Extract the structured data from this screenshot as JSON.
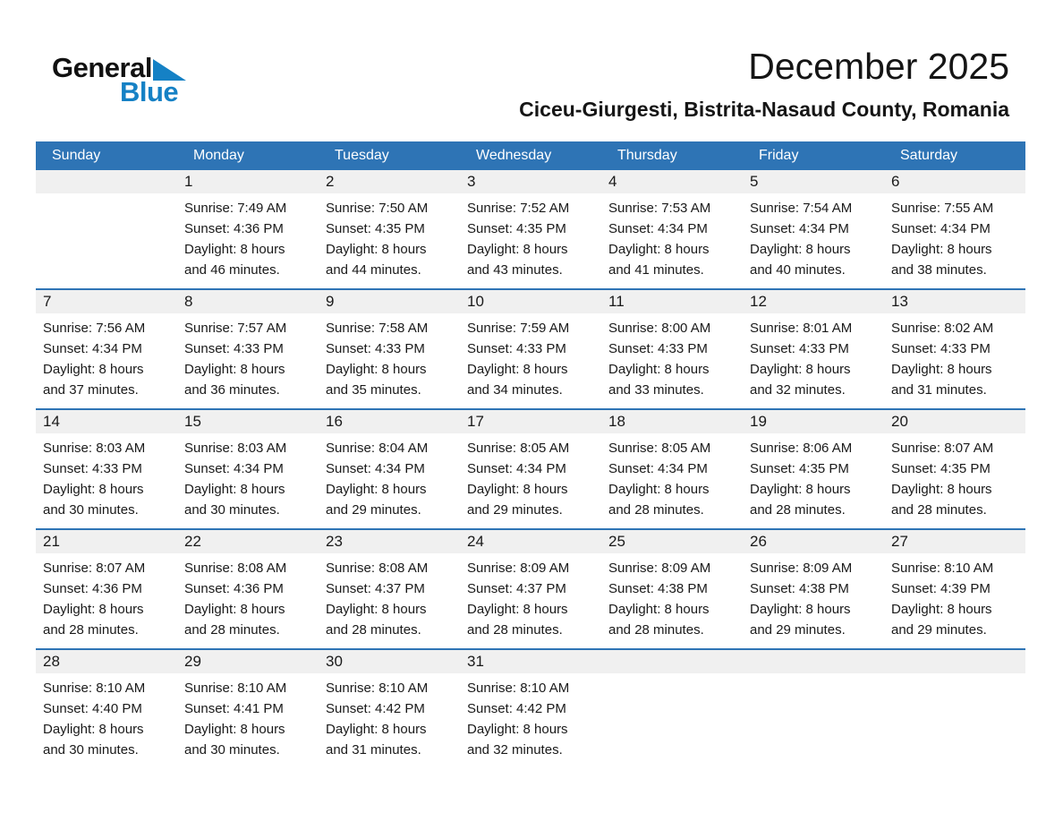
{
  "logo": {
    "part1": "General",
    "part2": "Blue"
  },
  "header": {
    "title": "December 2025",
    "subtitle": "Ciceu-Giurgesti, Bistrita-Nasaud County, Romania"
  },
  "colors": {
    "header_blue": "#2E74B5",
    "week_divider_blue": "#2E74B5",
    "number_band_gray": "#F0F0F0",
    "logo_blue": "#1581C5",
    "header_text": "#FFFFFF",
    "body_text": "#1A1A1A"
  },
  "calendar": {
    "day_headers": [
      "Sunday",
      "Monday",
      "Tuesday",
      "Wednesday",
      "Thursday",
      "Friday",
      "Saturday"
    ],
    "weeks": [
      {
        "days": [
          null,
          {
            "num": "1",
            "sunrise": "Sunrise: 7:49 AM",
            "sunset": "Sunset: 4:36 PM",
            "daylight1": "Daylight: 8 hours",
            "daylight2": "and 46 minutes."
          },
          {
            "num": "2",
            "sunrise": "Sunrise: 7:50 AM",
            "sunset": "Sunset: 4:35 PM",
            "daylight1": "Daylight: 8 hours",
            "daylight2": "and 44 minutes."
          },
          {
            "num": "3",
            "sunrise": "Sunrise: 7:52 AM",
            "sunset": "Sunset: 4:35 PM",
            "daylight1": "Daylight: 8 hours",
            "daylight2": "and 43 minutes."
          },
          {
            "num": "4",
            "sunrise": "Sunrise: 7:53 AM",
            "sunset": "Sunset: 4:34 PM",
            "daylight1": "Daylight: 8 hours",
            "daylight2": "and 41 minutes."
          },
          {
            "num": "5",
            "sunrise": "Sunrise: 7:54 AM",
            "sunset": "Sunset: 4:34 PM",
            "daylight1": "Daylight: 8 hours",
            "daylight2": "and 40 minutes."
          },
          {
            "num": "6",
            "sunrise": "Sunrise: 7:55 AM",
            "sunset": "Sunset: 4:34 PM",
            "daylight1": "Daylight: 8 hours",
            "daylight2": "and 38 minutes."
          }
        ]
      },
      {
        "days": [
          {
            "num": "7",
            "sunrise": "Sunrise: 7:56 AM",
            "sunset": "Sunset: 4:34 PM",
            "daylight1": "Daylight: 8 hours",
            "daylight2": "and 37 minutes."
          },
          {
            "num": "8",
            "sunrise": "Sunrise: 7:57 AM",
            "sunset": "Sunset: 4:33 PM",
            "daylight1": "Daylight: 8 hours",
            "daylight2": "and 36 minutes."
          },
          {
            "num": "9",
            "sunrise": "Sunrise: 7:58 AM",
            "sunset": "Sunset: 4:33 PM",
            "daylight1": "Daylight: 8 hours",
            "daylight2": "and 35 minutes."
          },
          {
            "num": "10",
            "sunrise": "Sunrise: 7:59 AM",
            "sunset": "Sunset: 4:33 PM",
            "daylight1": "Daylight: 8 hours",
            "daylight2": "and 34 minutes."
          },
          {
            "num": "11",
            "sunrise": "Sunrise: 8:00 AM",
            "sunset": "Sunset: 4:33 PM",
            "daylight1": "Daylight: 8 hours",
            "daylight2": "and 33 minutes."
          },
          {
            "num": "12",
            "sunrise": "Sunrise: 8:01 AM",
            "sunset": "Sunset: 4:33 PM",
            "daylight1": "Daylight: 8 hours",
            "daylight2": "and 32 minutes."
          },
          {
            "num": "13",
            "sunrise": "Sunrise: 8:02 AM",
            "sunset": "Sunset: 4:33 PM",
            "daylight1": "Daylight: 8 hours",
            "daylight2": "and 31 minutes."
          }
        ]
      },
      {
        "days": [
          {
            "num": "14",
            "sunrise": "Sunrise: 8:03 AM",
            "sunset": "Sunset: 4:33 PM",
            "daylight1": "Daylight: 8 hours",
            "daylight2": "and 30 minutes."
          },
          {
            "num": "15",
            "sunrise": "Sunrise: 8:03 AM",
            "sunset": "Sunset: 4:34 PM",
            "daylight1": "Daylight: 8 hours",
            "daylight2": "and 30 minutes."
          },
          {
            "num": "16",
            "sunrise": "Sunrise: 8:04 AM",
            "sunset": "Sunset: 4:34 PM",
            "daylight1": "Daylight: 8 hours",
            "daylight2": "and 29 minutes."
          },
          {
            "num": "17",
            "sunrise": "Sunrise: 8:05 AM",
            "sunset": "Sunset: 4:34 PM",
            "daylight1": "Daylight: 8 hours",
            "daylight2": "and 29 minutes."
          },
          {
            "num": "18",
            "sunrise": "Sunrise: 8:05 AM",
            "sunset": "Sunset: 4:34 PM",
            "daylight1": "Daylight: 8 hours",
            "daylight2": "and 28 minutes."
          },
          {
            "num": "19",
            "sunrise": "Sunrise: 8:06 AM",
            "sunset": "Sunset: 4:35 PM",
            "daylight1": "Daylight: 8 hours",
            "daylight2": "and 28 minutes."
          },
          {
            "num": "20",
            "sunrise": "Sunrise: 8:07 AM",
            "sunset": "Sunset: 4:35 PM",
            "daylight1": "Daylight: 8 hours",
            "daylight2": "and 28 minutes."
          }
        ]
      },
      {
        "days": [
          {
            "num": "21",
            "sunrise": "Sunrise: 8:07 AM",
            "sunset": "Sunset: 4:36 PM",
            "daylight1": "Daylight: 8 hours",
            "daylight2": "and 28 minutes."
          },
          {
            "num": "22",
            "sunrise": "Sunrise: 8:08 AM",
            "sunset": "Sunset: 4:36 PM",
            "daylight1": "Daylight: 8 hours",
            "daylight2": "and 28 minutes."
          },
          {
            "num": "23",
            "sunrise": "Sunrise: 8:08 AM",
            "sunset": "Sunset: 4:37 PM",
            "daylight1": "Daylight: 8 hours",
            "daylight2": "and 28 minutes."
          },
          {
            "num": "24",
            "sunrise": "Sunrise: 8:09 AM",
            "sunset": "Sunset: 4:37 PM",
            "daylight1": "Daylight: 8 hours",
            "daylight2": "and 28 minutes."
          },
          {
            "num": "25",
            "sunrise": "Sunrise: 8:09 AM",
            "sunset": "Sunset: 4:38 PM",
            "daylight1": "Daylight: 8 hours",
            "daylight2": "and 28 minutes."
          },
          {
            "num": "26",
            "sunrise": "Sunrise: 8:09 AM",
            "sunset": "Sunset: 4:38 PM",
            "daylight1": "Daylight: 8 hours",
            "daylight2": "and 29 minutes."
          },
          {
            "num": "27",
            "sunrise": "Sunrise: 8:10 AM",
            "sunset": "Sunset: 4:39 PM",
            "daylight1": "Daylight: 8 hours",
            "daylight2": "and 29 minutes."
          }
        ]
      },
      {
        "days": [
          {
            "num": "28",
            "sunrise": "Sunrise: 8:10 AM",
            "sunset": "Sunset: 4:40 PM",
            "daylight1": "Daylight: 8 hours",
            "daylight2": "and 30 minutes."
          },
          {
            "num": "29",
            "sunrise": "Sunrise: 8:10 AM",
            "sunset": "Sunset: 4:41 PM",
            "daylight1": "Daylight: 8 hours",
            "daylight2": "and 30 minutes."
          },
          {
            "num": "30",
            "sunrise": "Sunrise: 8:10 AM",
            "sunset": "Sunset: 4:42 PM",
            "daylight1": "Daylight: 8 hours",
            "daylight2": "and 31 minutes."
          },
          {
            "num": "31",
            "sunrise": "Sunrise: 8:10 AM",
            "sunset": "Sunset: 4:42 PM",
            "daylight1": "Daylight: 8 hours",
            "daylight2": "and 32 minutes."
          },
          null,
          null,
          null
        ]
      }
    ]
  }
}
